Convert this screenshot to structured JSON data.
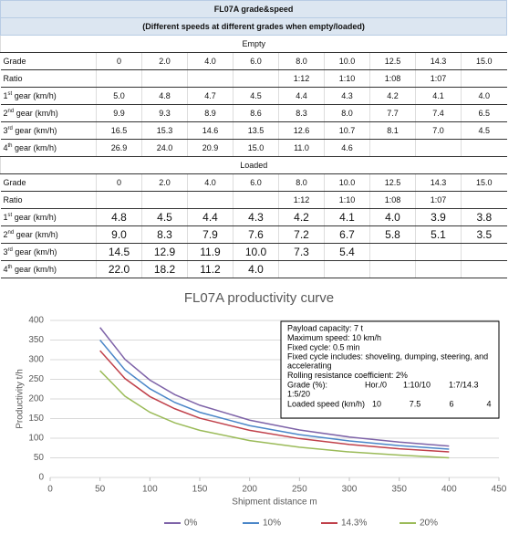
{
  "table": {
    "title": "FL07A grade&speed",
    "subtitle": "(Different speeds at different grades when empty/loaded)",
    "sections": [
      {
        "name": "Empty",
        "rows": [
          {
            "label": {
              "text": "Grade"
            },
            "cells": [
              "0",
              "2.0",
              "4.0",
              "6.0",
              "8.0",
              "10.0",
              "12.5",
              "14.3",
              "15.0"
            ]
          },
          {
            "label": {
              "text": "Ratio"
            },
            "cells": [
              null,
              null,
              null,
              null,
              "1:12",
              "1:10",
              "1:08",
              "1:07",
              null
            ]
          },
          {
            "label": {
              "num": "1",
              "sup": "st",
              "text": " gear (km/h)"
            },
            "cells": [
              "5.0",
              "4.8",
              "4.7",
              "4.5",
              "4.4",
              "4.3",
              "4.2",
              "4.1",
              "4.0"
            ]
          },
          {
            "label": {
              "num": "2",
              "sup": "nd",
              "text": " gear (km/h)"
            },
            "cells": [
              "9.9",
              "9.3",
              "8.9",
              "8.6",
              "8.3",
              "8.0",
              "7.7",
              "7.4",
              "6.5"
            ]
          },
          {
            "label": {
              "num": "3",
              "sup": "rd",
              "text": " gear (km/h)"
            },
            "cells": [
              "16.5",
              "15.3",
              "14.6",
              "13.5",
              "12.6",
              "10.7",
              "8.1",
              "7.0",
              "4.5"
            ]
          },
          {
            "label": {
              "num": "4",
              "sup": "th",
              "text": " gear (km/h)"
            },
            "cells": [
              "26.9",
              "24.0",
              "20.9",
              "15.0",
              "11.0",
              "4.6",
              null,
              null,
              null
            ]
          }
        ]
      },
      {
        "name": "Loaded",
        "rows": [
          {
            "label": {
              "text": "Grade"
            },
            "cells": [
              "0",
              "2.0",
              "4.0",
              "6.0",
              "8.0",
              "10.0",
              "12.5",
              "14.3",
              "15.0"
            ]
          },
          {
            "label": {
              "text": "Ratio"
            },
            "cells": [
              null,
              null,
              null,
              null,
              "1:12",
              "1:10",
              "1:08",
              "1:07",
              null
            ]
          },
          {
            "label": {
              "num": "1",
              "sup": "st",
              "text": " gear (km/h)"
            },
            "cells": [
              "4.8",
              "4.5",
              "4.4",
              "4.3",
              "4.2",
              "4.1",
              "4.0",
              "3.9",
              "3.8"
            ]
          },
          {
            "label": {
              "num": "2",
              "sup": "nd",
              "text": " gear (km/h)"
            },
            "cells": [
              "9.0",
              "8.3",
              "7.9",
              "7.6",
              "7.2",
              "6.7",
              "5.8",
              "5.1",
              "3.5"
            ]
          },
          {
            "label": {
              "num": "3",
              "sup": "rd",
              "text": " gear (km/h)"
            },
            "cells": [
              "14.5",
              "12.9",
              "11.9",
              "10.0",
              "7.3",
              "5.4",
              null,
              null,
              null
            ]
          },
          {
            "label": {
              "num": "4",
              "sup": "th",
              "text": " gear (km/h)"
            },
            "cells": [
              "22.0",
              "18.2",
              "11.2",
              "4.0",
              null,
              null,
              null,
              null,
              null
            ]
          }
        ]
      }
    ]
  },
  "chart_data": {
    "type": "line",
    "title": "FL07A productivity curve",
    "x_label": "Shipment distance m",
    "y_label": "Productivity t/h",
    "x": [
      50,
      75,
      100,
      125,
      150,
      200,
      250,
      300,
      350,
      400
    ],
    "series": [
      {
        "name": "0%",
        "color": "#7e63a8",
        "values": [
          382,
          301,
          248,
          211,
          184,
          146,
          121,
          103,
          90,
          80
        ]
      },
      {
        "name": "10%",
        "color": "#4a86c8",
        "values": [
          350,
          274,
          226,
          191,
          166,
          132,
          109,
          93,
          81,
          72
        ]
      },
      {
        "name": "14.3%",
        "color": "#c0404a",
        "values": [
          323,
          252,
          206,
          175,
          151,
          120,
          99,
          84,
          73,
          65
        ]
      },
      {
        "name": "20%",
        "color": "#9bbb59",
        "values": [
          272,
          207,
          166,
          139,
          120,
          94,
          77,
          65,
          57,
          50
        ]
      }
    ],
    "xlim": [
      0,
      450
    ],
    "xticks": [
      0,
      50,
      100,
      150,
      200,
      250,
      300,
      350,
      400,
      450
    ],
    "ylim": [
      0,
      400
    ],
    "yticks": [
      0,
      50,
      100,
      150,
      200,
      250,
      300,
      350,
      400
    ],
    "grid": true,
    "legend": "bottom",
    "notes": [
      "Payload capacity: 7 t",
      "Maximum speed: 10 km/h",
      "Fixed cycle: 0.5 min",
      "Fixed cycle includes: shoveling, dumping, steering, and accelerating",
      "Rolling resistance coefficient: 2%"
    ],
    "grade_label": "Grade (%):",
    "grades": [
      "Hor./0",
      "1:10/10",
      "1:7/14.3",
      "1:5/20"
    ],
    "speed_label": "Loaded speed (km/h)",
    "speeds": [
      "10",
      "7.5",
      "6",
      "4"
    ]
  }
}
